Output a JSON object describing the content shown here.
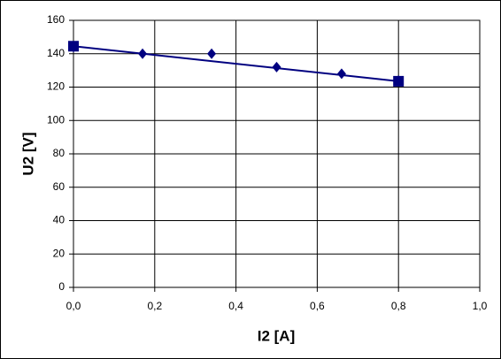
{
  "chart_data": {
    "type": "scatter",
    "x_label": "I2 [A]",
    "y_label": "U2 [V]",
    "xlim": [
      0,
      1
    ],
    "ylim": [
      0,
      160
    ],
    "xticks": [
      {
        "value": 0,
        "label": "0,0"
      },
      {
        "value": 0.2,
        "label": "0,2"
      },
      {
        "value": 0.4,
        "label": "0,4"
      },
      {
        "value": 0.6,
        "label": "0,6"
      },
      {
        "value": 0.8,
        "label": "0,8"
      },
      {
        "value": 1,
        "label": "1,0"
      }
    ],
    "yticks": [
      0,
      20,
      40,
      60,
      80,
      100,
      120,
      140,
      160
    ],
    "grid": true,
    "series": [
      {
        "color": "#000080",
        "marker": "diamond",
        "line": false,
        "x": [
          0,
          0.17,
          0.34,
          0.5,
          0.66,
          0.8
        ],
        "values": [
          144,
          140,
          140,
          132,
          128,
          124
        ]
      },
      {
        "color": "#000080",
        "marker": "square",
        "line": true,
        "x": [
          0,
          0.8
        ],
        "values": [
          144.5,
          123.5
        ]
      }
    ]
  }
}
